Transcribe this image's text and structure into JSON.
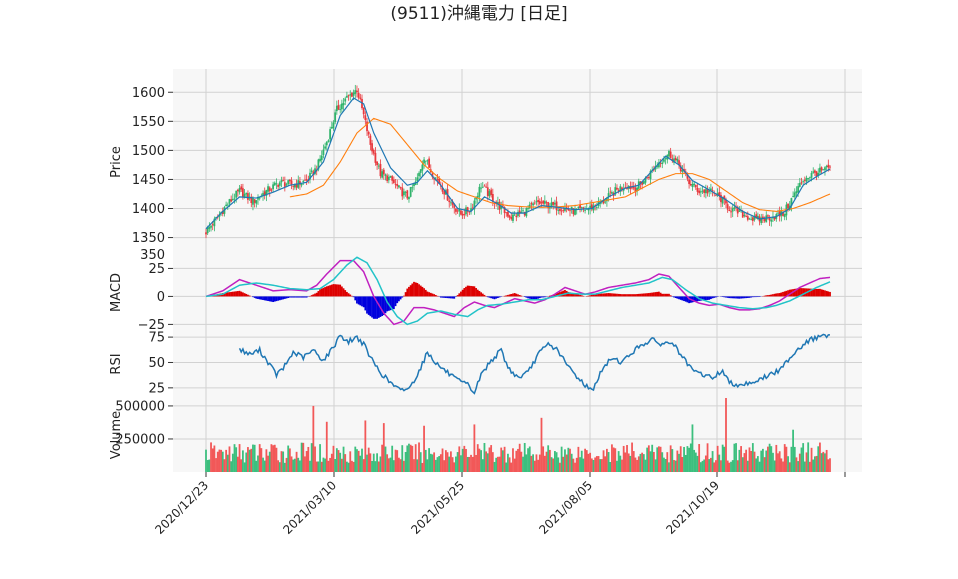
{
  "chart_data": {
    "type": "candlestick",
    "title": "(9511)沖縄電力 [日足]",
    "x_tick_labels": [
      "2020/12/23",
      "2021/03/10",
      "2021/05/25",
      "2021/08/05",
      "2021/10/19"
    ],
    "colors": {
      "up": "#2fb36b",
      "down": "#e8383d",
      "ma_short": "#1f77b4",
      "ma_long": "#ff7f0e",
      "macd_line": "#c020c0",
      "signal_line": "#22c3c8",
      "hist_pos": "#dd0000",
      "hist_neg": "#0000dd",
      "rsi": "#1f77b4",
      "vol_up": "#3cbf7e",
      "vol_down": "#f25858"
    },
    "panels": {
      "price": {
        "ylabel": "Price",
        "ylim": [
          1320,
          1640
        ],
        "ticks": [
          1350,
          1400,
          1450,
          1500,
          1550,
          1600
        ],
        "keypoints": [
          [
            0,
            1360
          ],
          [
            5,
            1378
          ],
          [
            12,
            1405
          ],
          [
            20,
            1430
          ],
          [
            28,
            1412
          ],
          [
            36,
            1430
          ],
          [
            44,
            1445
          ],
          [
            52,
            1440
          ],
          [
            60,
            1448
          ],
          [
            66,
            1470
          ],
          [
            72,
            1515
          ],
          [
            78,
            1570
          ],
          [
            84,
            1590
          ],
          [
            90,
            1605
          ],
          [
            94,
            1560
          ],
          [
            98,
            1510
          ],
          [
            104,
            1460
          ],
          [
            110,
            1450
          ],
          [
            116,
            1430
          ],
          [
            120,
            1420
          ],
          [
            126,
            1450
          ],
          [
            130,
            1490
          ],
          [
            134,
            1465
          ],
          [
            140,
            1440
          ],
          [
            146,
            1410
          ],
          [
            152,
            1390
          ],
          [
            158,
            1400
          ],
          [
            164,
            1440
          ],
          [
            170,
            1420
          ],
          [
            176,
            1400
          ],
          [
            182,
            1385
          ],
          [
            190,
            1395
          ],
          [
            198,
            1410
          ],
          [
            206,
            1405
          ],
          [
            214,
            1400
          ],
          [
            220,
            1395
          ],
          [
            228,
            1400
          ],
          [
            236,
            1410
          ],
          [
            244,
            1430
          ],
          [
            250,
            1440
          ],
          [
            256,
            1435
          ],
          [
            262,
            1450
          ],
          [
            270,
            1480
          ],
          [
            276,
            1495
          ],
          [
            282,
            1475
          ],
          [
            288,
            1445
          ],
          [
            294,
            1430
          ],
          [
            300,
            1430
          ],
          [
            306,
            1420
          ],
          [
            312,
            1400
          ],
          [
            320,
            1390
          ],
          [
            328,
            1380
          ],
          [
            336,
            1385
          ],
          [
            344,
            1390
          ],
          [
            350,
            1420
          ],
          [
            356,
            1450
          ],
          [
            362,
            1460
          ],
          [
            368,
            1465
          ],
          [
            372,
            1470
          ]
        ],
        "ma_short_keypoints": [
          [
            0,
            1365
          ],
          [
            10,
            1395
          ],
          [
            20,
            1420
          ],
          [
            30,
            1418
          ],
          [
            40,
            1428
          ],
          [
            50,
            1440
          ],
          [
            60,
            1445
          ],
          [
            70,
            1480
          ],
          [
            80,
            1560
          ],
          [
            88,
            1590
          ],
          [
            94,
            1580
          ],
          [
            100,
            1530
          ],
          [
            110,
            1470
          ],
          [
            120,
            1440
          ],
          [
            126,
            1445
          ],
          [
            132,
            1465
          ],
          [
            140,
            1440
          ],
          [
            150,
            1400
          ],
          [
            158,
            1395
          ],
          [
            166,
            1420
          ],
          [
            174,
            1408
          ],
          [
            182,
            1392
          ],
          [
            190,
            1392
          ],
          [
            200,
            1405
          ],
          [
            210,
            1402
          ],
          [
            220,
            1398
          ],
          [
            230,
            1400
          ],
          [
            240,
            1420
          ],
          [
            250,
            1435
          ],
          [
            258,
            1440
          ],
          [
            266,
            1465
          ],
          [
            274,
            1490
          ],
          [
            282,
            1475
          ],
          [
            290,
            1448
          ],
          [
            300,
            1432
          ],
          [
            310,
            1415
          ],
          [
            320,
            1395
          ],
          [
            330,
            1382
          ],
          [
            340,
            1386
          ],
          [
            348,
            1400
          ],
          [
            356,
            1440
          ],
          [
            364,
            1455
          ],
          [
            372,
            1468
          ]
        ],
        "ma_long_keypoints": [
          [
            50,
            1420
          ],
          [
            60,
            1425
          ],
          [
            70,
            1440
          ],
          [
            80,
            1480
          ],
          [
            90,
            1530
          ],
          [
            100,
            1555
          ],
          [
            110,
            1545
          ],
          [
            120,
            1510
          ],
          [
            130,
            1475
          ],
          [
            140,
            1450
          ],
          [
            150,
            1430
          ],
          [
            160,
            1420
          ],
          [
            170,
            1410
          ],
          [
            180,
            1405
          ],
          [
            190,
            1403
          ],
          [
            200,
            1402
          ],
          [
            210,
            1403
          ],
          [
            220,
            1405
          ],
          [
            230,
            1410
          ],
          [
            240,
            1415
          ],
          [
            250,
            1420
          ],
          [
            260,
            1435
          ],
          [
            270,
            1450
          ],
          [
            280,
            1460
          ],
          [
            290,
            1460
          ],
          [
            300,
            1450
          ],
          [
            310,
            1430
          ],
          [
            320,
            1410
          ],
          [
            330,
            1398
          ],
          [
            340,
            1395
          ],
          [
            350,
            1400
          ],
          [
            360,
            1410
          ],
          [
            372,
            1425
          ]
        ]
      },
      "macd": {
        "ylabel": "MACD",
        "ylim": [
          -30,
          37
        ],
        "ticks": [
          -25,
          0,
          25
        ],
        "tick_labels": [
          "−25",
          "0",
          "25"
        ],
        "extra_tick_label": "350",
        "macd_keypoints": [
          [
            0,
            0
          ],
          [
            10,
            5
          ],
          [
            20,
            15
          ],
          [
            30,
            10
          ],
          [
            40,
            5
          ],
          [
            50,
            6
          ],
          [
            60,
            5
          ],
          [
            66,
            10
          ],
          [
            72,
            20
          ],
          [
            80,
            32
          ],
          [
            88,
            32
          ],
          [
            94,
            22
          ],
          [
            100,
            0
          ],
          [
            106,
            -15
          ],
          [
            112,
            -25
          ],
          [
            118,
            -22
          ],
          [
            124,
            -10
          ],
          [
            130,
            -10
          ],
          [
            136,
            -12
          ],
          [
            142,
            -15
          ],
          [
            148,
            -18
          ],
          [
            154,
            -10
          ],
          [
            160,
            -5
          ],
          [
            166,
            -8
          ],
          [
            172,
            -10
          ],
          [
            178,
            -6
          ],
          [
            184,
            -2
          ],
          [
            190,
            -4
          ],
          [
            196,
            -6
          ],
          [
            202,
            -3
          ],
          [
            208,
            2
          ],
          [
            214,
            8
          ],
          [
            220,
            5
          ],
          [
            226,
            2
          ],
          [
            232,
            4
          ],
          [
            240,
            8
          ],
          [
            248,
            10
          ],
          [
            256,
            12
          ],
          [
            264,
            15
          ],
          [
            270,
            20
          ],
          [
            276,
            18
          ],
          [
            282,
            8
          ],
          [
            288,
            -2
          ],
          [
            294,
            -6
          ],
          [
            300,
            -8
          ],
          [
            306,
            -7
          ],
          [
            312,
            -10
          ],
          [
            318,
            -12
          ],
          [
            324,
            -12
          ],
          [
            330,
            -11
          ],
          [
            336,
            -8
          ],
          [
            342,
            -4
          ],
          [
            348,
            2
          ],
          [
            354,
            8
          ],
          [
            360,
            12
          ],
          [
            366,
            16
          ],
          [
            372,
            17
          ]
        ],
        "signal_keypoints": [
          [
            0,
            0
          ],
          [
            10,
            2
          ],
          [
            20,
            10
          ],
          [
            30,
            12
          ],
          [
            40,
            10
          ],
          [
            50,
            7
          ],
          [
            60,
            6
          ],
          [
            68,
            7
          ],
          [
            76,
            15
          ],
          [
            84,
            28
          ],
          [
            90,
            35
          ],
          [
            96,
            30
          ],
          [
            102,
            15
          ],
          [
            108,
            -5
          ],
          [
            114,
            -18
          ],
          [
            120,
            -25
          ],
          [
            126,
            -22
          ],
          [
            132,
            -15
          ],
          [
            140,
            -13
          ],
          [
            148,
            -16
          ],
          [
            156,
            -18
          ],
          [
            162,
            -12
          ],
          [
            168,
            -8
          ],
          [
            176,
            -7
          ],
          [
            184,
            -5
          ],
          [
            192,
            -3
          ],
          [
            200,
            -3
          ],
          [
            208,
            0
          ],
          [
            216,
            3
          ],
          [
            224,
            2
          ],
          [
            232,
            2
          ],
          [
            240,
            5
          ],
          [
            248,
            8
          ],
          [
            256,
            10
          ],
          [
            264,
            12
          ],
          [
            272,
            17
          ],
          [
            278,
            15
          ],
          [
            286,
            6
          ],
          [
            294,
            -2
          ],
          [
            302,
            -6
          ],
          [
            310,
            -8
          ],
          [
            318,
            -10
          ],
          [
            326,
            -11
          ],
          [
            334,
            -10
          ],
          [
            340,
            -8
          ],
          [
            348,
            -4
          ],
          [
            356,
            2
          ],
          [
            364,
            8
          ],
          [
            372,
            13
          ]
        ]
      },
      "rsi": {
        "ylabel": "RSI",
        "ylim": [
          15,
          82
        ],
        "ticks": [
          25,
          50,
          75
        ],
        "keypoints": [
          [
            20,
            63
          ],
          [
            26,
            58
          ],
          [
            32,
            62
          ],
          [
            38,
            48
          ],
          [
            42,
            38
          ],
          [
            46,
            44
          ],
          [
            52,
            60
          ],
          [
            58,
            55
          ],
          [
            64,
            62
          ],
          [
            70,
            52
          ],
          [
            76,
            65
          ],
          [
            80,
            78
          ],
          [
            84,
            70
          ],
          [
            90,
            75
          ],
          [
            94,
            68
          ],
          [
            98,
            55
          ],
          [
            104,
            40
          ],
          [
            110,
            30
          ],
          [
            116,
            22
          ],
          [
            122,
            26
          ],
          [
            128,
            45
          ],
          [
            132,
            60
          ],
          [
            138,
            48
          ],
          [
            144,
            40
          ],
          [
            150,
            32
          ],
          [
            156,
            28
          ],
          [
            160,
            20
          ],
          [
            164,
            38
          ],
          [
            170,
            52
          ],
          [
            176,
            62
          ],
          [
            180,
            45
          ],
          [
            186,
            35
          ],
          [
            192,
            40
          ],
          [
            198,
            58
          ],
          [
            204,
            68
          ],
          [
            210,
            62
          ],
          [
            214,
            50
          ],
          [
            220,
            38
          ],
          [
            226,
            28
          ],
          [
            230,
            22
          ],
          [
            236,
            42
          ],
          [
            242,
            55
          ],
          [
            248,
            50
          ],
          [
            254,
            60
          ],
          [
            260,
            68
          ],
          [
            266,
            72
          ],
          [
            272,
            68
          ],
          [
            278,
            70
          ],
          [
            284,
            55
          ],
          [
            290,
            42
          ],
          [
            296,
            38
          ],
          [
            302,
            35
          ],
          [
            308,
            42
          ],
          [
            312,
            30
          ],
          [
            318,
            28
          ],
          [
            324,
            30
          ],
          [
            330,
            33
          ],
          [
            336,
            38
          ],
          [
            342,
            42
          ],
          [
            348,
            55
          ],
          [
            354,
            65
          ],
          [
            360,
            72
          ],
          [
            366,
            76
          ],
          [
            372,
            75
          ]
        ]
      },
      "volume": {
        "ylabel": "Volume",
        "ylim": [
          0,
          560000
        ],
        "ticks": [
          250000,
          500000
        ],
        "base": 150000,
        "spikes": [
          [
            64,
            500000
          ],
          [
            95,
            390000
          ],
          [
            72,
            380000
          ],
          [
            130,
            350000
          ],
          [
            106,
            370000
          ],
          [
            350,
            320000
          ],
          [
            310,
            560000
          ],
          [
            160,
            360000
          ],
          [
            200,
            410000
          ],
          [
            290,
            360000
          ]
        ]
      }
    },
    "n_points": 373
  }
}
